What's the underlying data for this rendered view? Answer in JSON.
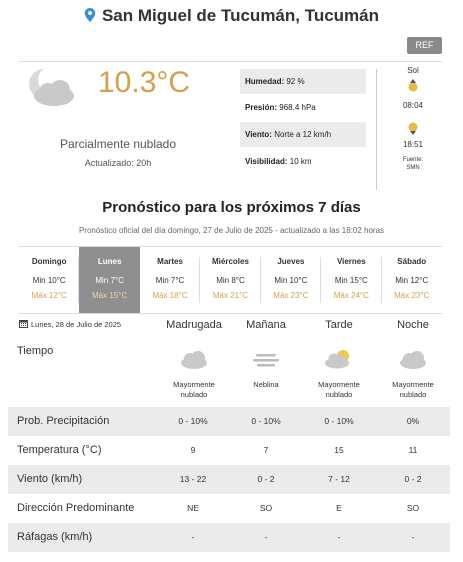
{
  "location": "San Miguel de Tucumán, Tucumán",
  "ref_button": "REF",
  "current": {
    "temperature": "10.3°C",
    "condition": "Parcialmente nublado",
    "updated": "Actualizado: 20h",
    "icon": "partly-cloudy-night-icon"
  },
  "stats": [
    {
      "label": "Humedad:",
      "value": "92 %"
    },
    {
      "label": "Presión:",
      "value": "968.4 hPa"
    },
    {
      "label": "Viento:",
      "value": "Norte a 12 km/h"
    },
    {
      "label": "Visibilidad:",
      "value": "10 km"
    }
  ],
  "sun": {
    "title": "Sol",
    "sunrise": "08:04",
    "sunset": "18:51",
    "source_line1": "Fuente:",
    "source_line2": "SMN"
  },
  "forecast_title": "Pronóstico para los próximos 7 días",
  "forecast_sub_prefix": "Pronóstico oficial del día domingo, 27 de Julio de 2025 - actualizado a las 18:02 horas",
  "days": [
    {
      "name": "Domingo",
      "min": "Min 10°C",
      "max": "Máx 12°C",
      "active": false
    },
    {
      "name": "Lunes",
      "min": "Min 7°C",
      "max": "Máx 15°C",
      "active": true
    },
    {
      "name": "Martes",
      "min": "Min 7°C",
      "max": "Máx 18°C",
      "active": false
    },
    {
      "name": "Miércoles",
      "min": "Min 8°C",
      "max": "Máx 21°C",
      "active": false
    },
    {
      "name": "Jueves",
      "min": "Min 10°C",
      "max": "Máx 23°C",
      "active": false
    },
    {
      "name": "Viernes",
      "min": "Min 15°C",
      "max": "Máx 24°C",
      "active": false
    },
    {
      "name": "Sábado",
      "min": "Min 12°C",
      "max": "Máx 23°C",
      "active": false
    }
  ],
  "detail": {
    "date": "Lunes, 28 de Julio de 2025",
    "columns": [
      "Madrugada",
      "Mañana",
      "Tarde",
      "Noche"
    ],
    "tiempo_label": "Tiempo",
    "tiempo": [
      {
        "icon": "cloudy-icon",
        "text1": "Mayormente",
        "text2": "nublado"
      },
      {
        "icon": "fog-icon",
        "text1": "Neblina",
        "text2": ""
      },
      {
        "icon": "partly-sunny-icon",
        "text1": "Mayormente",
        "text2": "nublado"
      },
      {
        "icon": "cloudy-icon",
        "text1": "Mayormente",
        "text2": "nublado"
      }
    ],
    "rows": [
      {
        "label": "Prob. Precipitación",
        "values": [
          "0 - 10%",
          "0 - 10%",
          "0 - 10%",
          "0%"
        ]
      },
      {
        "label": "Temperatura (°C)",
        "values": [
          "9",
          "7",
          "15",
          "11"
        ]
      },
      {
        "label": "Viento (km/h)",
        "values": [
          "13 - 22",
          "0 - 2",
          "7 - 12",
          "0 - 2"
        ]
      },
      {
        "label": "Dirección Predominante",
        "values": [
          "NE",
          "SO",
          "E",
          "SO"
        ]
      },
      {
        "label": "Ráfagas (km/h)",
        "values": [
          "-",
          "-",
          "-",
          "-"
        ]
      }
    ]
  },
  "colors": {
    "accent": "#d4a04c",
    "active_day": "#8f8f8f",
    "stripe": "#ebebeb",
    "pin": "#3a8fd1"
  }
}
